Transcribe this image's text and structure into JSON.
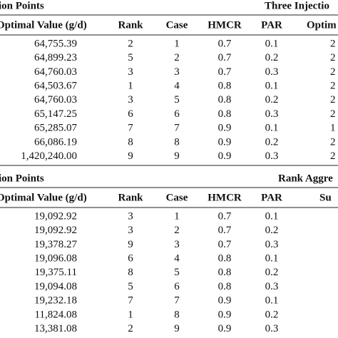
{
  "sections": [
    {
      "title_left": "ion Points",
      "title_right": "Three Injectio",
      "header": [
        "Optimal Value (g/d)",
        "Rank",
        "Case",
        "HMCR",
        "PAR",
        "Optim"
      ],
      "rows": [
        [
          "64,755.39",
          "2",
          "1",
          "0.7",
          "0.1",
          "2"
        ],
        [
          "64,899.23",
          "5",
          "2",
          "0.7",
          "0.2",
          "2"
        ],
        [
          "64,760.03",
          "3",
          "3",
          "0.7",
          "0.3",
          "2"
        ],
        [
          "64,503.67",
          "1",
          "4",
          "0.8",
          "0.1",
          "2"
        ],
        [
          "64,760.03",
          "3",
          "5",
          "0.8",
          "0.2",
          "2"
        ],
        [
          "65,147.25",
          "6",
          "6",
          "0.8",
          "0.3",
          "2"
        ],
        [
          "65,285.07",
          "7",
          "7",
          "0.9",
          "0.1",
          "1"
        ],
        [
          "66,086.19",
          "8",
          "8",
          "0.9",
          "0.2",
          "2"
        ],
        [
          "1,420,240.00",
          "9",
          "9",
          "0.9",
          "0.3",
          "2"
        ]
      ]
    },
    {
      "title_left": "ion Points",
      "title_right": "Rank Aggre",
      "header": [
        "Optimal Value (g/d)",
        "Rank",
        "Case",
        "HMCR",
        "PAR",
        "Su"
      ],
      "rows": [
        [
          "19,092.92",
          "3",
          "1",
          "0.7",
          "0.1"
        ],
        [
          "19,092.92",
          "3",
          "2",
          "0.7",
          "0.2"
        ],
        [
          "19,378.27",
          "9",
          "3",
          "0.7",
          "0.3"
        ],
        [
          "19,096.08",
          "6",
          "4",
          "0.8",
          "0.1"
        ],
        [
          "19,375.11",
          "8",
          "5",
          "0.8",
          "0.2"
        ],
        [
          "19,094.08",
          "5",
          "6",
          "0.8",
          "0.3"
        ],
        [
          "19,232.18",
          "7",
          "7",
          "0.9",
          "0.1"
        ],
        [
          "11,824.08",
          "1",
          "8",
          "0.9",
          "0.2"
        ],
        [
          "13,381.08",
          "2",
          "9",
          "0.9",
          "0.3"
        ]
      ]
    }
  ]
}
